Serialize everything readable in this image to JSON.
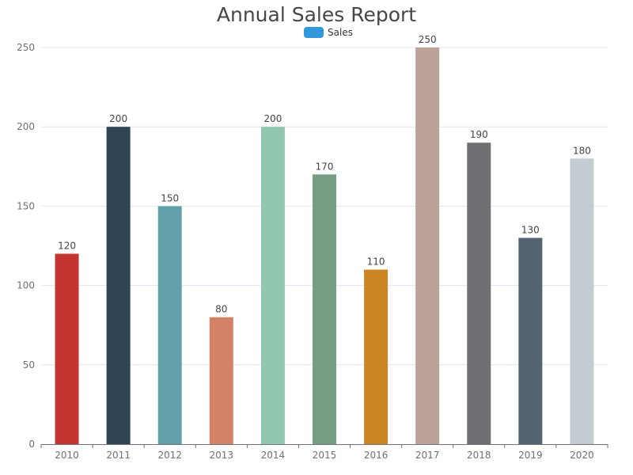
{
  "chart_data": {
    "type": "bar",
    "title": "Annual Sales Report",
    "categories": [
      "2010",
      "2011",
      "2012",
      "2013",
      "2014",
      "2015",
      "2016",
      "2017",
      "2018",
      "2019",
      "2020"
    ],
    "series": [
      {
        "name": "Sales",
        "values": [
          120,
          200,
          150,
          80,
          200,
          170,
          110,
          250,
          190,
          130,
          180
        ]
      }
    ],
    "bar_colors": [
      "#c23531",
      "#2f4554",
      "#61a0a8",
      "#d48265",
      "#91c7ae",
      "#749f83",
      "#ca8622",
      "#bda29a",
      "#6e7074",
      "#546570",
      "#c4ccd3"
    ],
    "legend_color": "#3398DB",
    "ylim": [
      0,
      250
    ],
    "yticks": [
      0,
      50,
      100,
      150,
      200,
      250
    ],
    "xlabel": "",
    "ylabel": "",
    "grid": true,
    "legend_position": "top-center"
  }
}
